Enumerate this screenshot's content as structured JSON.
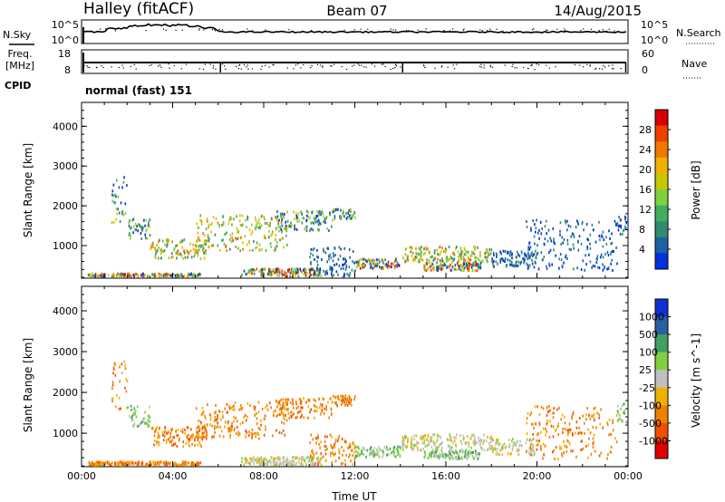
{
  "header": {
    "station": "Halley (fitACF)",
    "beam": "Beam 07",
    "date": "14/Aug/2015"
  },
  "strip_labels": {
    "nsky": "N.Sky",
    "nsky_ticks": [
      "10^5",
      "10^0"
    ],
    "nsearch": "N.Search",
    "nsearch_ticks": [
      "10^5",
      "10^0"
    ],
    "freq": "Freq.",
    "freq_unit": "[MHz]",
    "freq_ticks": [
      "18",
      "8"
    ],
    "nave": "Nave",
    "nave_ticks": [
      "60",
      "0"
    ],
    "cpid": "CPID",
    "cpid_value": "normal (fast) 151"
  },
  "chart_data": [
    {
      "type": "heatmap",
      "name": "power",
      "ylabel": "Slant Range [km]",
      "xlabel": "",
      "x_ticks": [
        "00:00",
        "04:00",
        "08:00",
        "12:00",
        "16:00",
        "20:00",
        "00:00"
      ],
      "xlim_hours": [
        0,
        24
      ],
      "ylim": [
        180,
        4600
      ],
      "y_ticks": [
        1000,
        2000,
        3000,
        4000
      ],
      "colorbar": {
        "label": "Power [dB]",
        "ticks": [
          "28",
          "24",
          "20",
          "16",
          "12",
          "8",
          "4"
        ],
        "colors": [
          "#d60000",
          "#f04000",
          "#f07800",
          "#f0b000",
          "#c8c800",
          "#80d040",
          "#40b060",
          "#308c70",
          "#2060a0",
          "#0030e0"
        ]
      }
    },
    {
      "type": "heatmap",
      "name": "velocity",
      "ylabel": "Slant Range [km]",
      "xlabel": "Time UT",
      "x_ticks": [
        "00:00",
        "04:00",
        "08:00",
        "12:00",
        "16:00",
        "20:00",
        "00:00"
      ],
      "xlim_hours": [
        0,
        24
      ],
      "ylim": [
        180,
        4600
      ],
      "y_ticks": [
        1000,
        2000,
        3000,
        4000
      ],
      "colorbar": {
        "label": "Velocity [m s^-1]",
        "ticks": [
          "1000",
          "500",
          "100",
          "25",
          "-25",
          "-100",
          "-500",
          "-1000"
        ],
        "colors": [
          "#1030d0",
          "#2860a0",
          "#40a060",
          "#80d040",
          "#c0c0c0",
          "#f0b000",
          "#f08000",
          "#f05000",
          "#e00000"
        ]
      }
    }
  ],
  "scatter_regions": [
    {
      "t0": 0.2,
      "t1": 1.0,
      "r0": 200,
      "r1": 300,
      "p": "low",
      "v": "gray"
    },
    {
      "t0": 0.3,
      "t1": 5.2,
      "r0": 220,
      "r1": 330,
      "p": "mix",
      "v": "orange"
    },
    {
      "t0": 1.3,
      "t1": 2.0,
      "r0": 1600,
      "r1": 2800,
      "p": "mid",
      "v": "orange"
    },
    {
      "t0": 2.0,
      "t1": 3.0,
      "r0": 1200,
      "r1": 1700,
      "p": "mid",
      "v": "green"
    },
    {
      "t0": 3.0,
      "t1": 5.5,
      "r0": 700,
      "r1": 1200,
      "p": "high",
      "v": "orange"
    },
    {
      "t0": 5.0,
      "t1": 9.0,
      "r0": 900,
      "r1": 1800,
      "p": "high",
      "v": "orange"
    },
    {
      "t0": 8.5,
      "t1": 11.0,
      "r0": 1400,
      "r1": 1900,
      "p": "mid",
      "v": "orange"
    },
    {
      "t0": 11.0,
      "t1": 12.0,
      "r0": 1700,
      "r1": 1950,
      "p": "mid",
      "v": "orange"
    },
    {
      "t0": 7.0,
      "t1": 10.5,
      "r0": 250,
      "r1": 450,
      "p": "mix",
      "v": "gray"
    },
    {
      "t0": 10.0,
      "t1": 12.0,
      "r0": 250,
      "r1": 1000,
      "p": "low",
      "v": "orange"
    },
    {
      "t0": 12.0,
      "t1": 14.0,
      "r0": 450,
      "r1": 700,
      "p": "mix",
      "v": "green"
    },
    {
      "t0": 14.0,
      "t1": 18.0,
      "r0": 600,
      "r1": 1000,
      "p": "high",
      "v": "gray"
    },
    {
      "t0": 15.0,
      "t1": 17.5,
      "r0": 400,
      "r1": 600,
      "p": "mix",
      "v": "green"
    },
    {
      "t0": 18.0,
      "t1": 20.0,
      "r0": 500,
      "r1": 900,
      "p": "low",
      "v": "gray"
    },
    {
      "t0": 19.5,
      "t1": 23.5,
      "r0": 400,
      "r1": 1700,
      "p": "low",
      "v": "orange"
    },
    {
      "t0": 23.5,
      "t1": 24.0,
      "r0": 1300,
      "r1": 1800,
      "p": "low",
      "v": "green"
    }
  ]
}
